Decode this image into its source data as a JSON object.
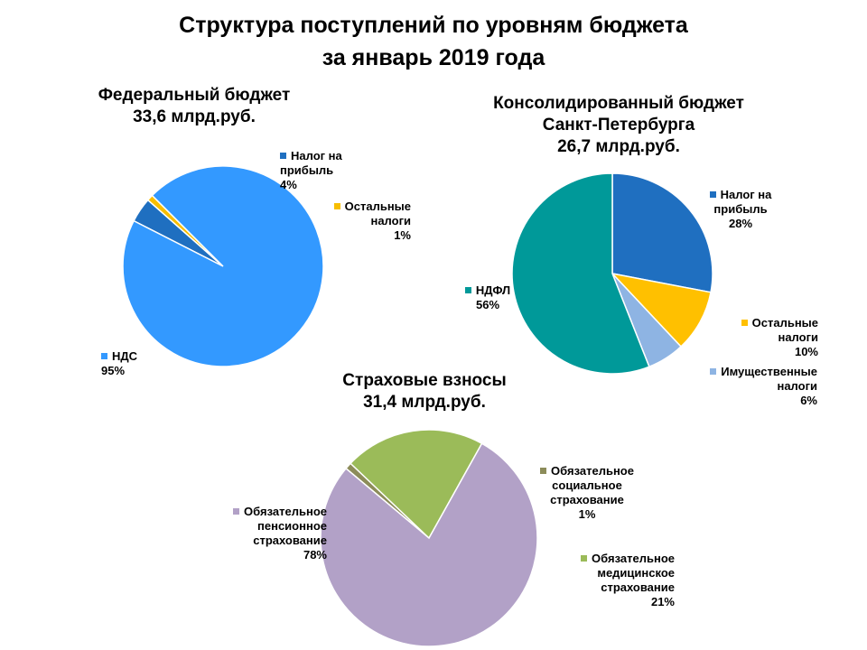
{
  "title": {
    "line1": "Структура поступлений по уровням бюджета",
    "line2": "за январь 2019 года"
  },
  "chart_data": [
    {
      "type": "pie",
      "title": [
        "Федеральный бюджет",
        "33,6 млрд.руб."
      ],
      "slices": [
        {
          "label": [
            "Налог на",
            "прибыль"
          ],
          "value": 4,
          "value_text": "4%",
          "color": "#1F6FC0"
        },
        {
          "label": [
            "Остальные",
            "налоги"
          ],
          "value": 1,
          "value_text": "1%",
          "color": "#F7BE00"
        },
        {
          "label": [
            "НДС"
          ],
          "value": 95,
          "value_text": "95%",
          "color": "#3399FF"
        }
      ]
    },
    {
      "type": "pie",
      "title": [
        "Консолидированный бюджет",
        "Санкт-Петербурга",
        "26,7 млрд.руб."
      ],
      "slices": [
        {
          "label": [
            "Налог на",
            "прибыль"
          ],
          "value": 28,
          "value_text": "28%",
          "color": "#1F6FC0"
        },
        {
          "label": [
            "Остальные",
            "налоги"
          ],
          "value": 10,
          "value_text": "10%",
          "color": "#FFC000"
        },
        {
          "label": [
            "Имущественные",
            "налоги"
          ],
          "value": 6,
          "value_text": "6%",
          "color": "#8EB4E3"
        },
        {
          "label": [
            "НДФЛ"
          ],
          "value": 56,
          "value_text": "56%",
          "color": "#009999"
        }
      ]
    },
    {
      "type": "pie",
      "title": [
        "Страховые взносы",
        "31,4 млрд.руб."
      ],
      "slices": [
        {
          "label": [
            "Обязательное",
            "социальное",
            "страхование"
          ],
          "value": 1,
          "value_text": "1%",
          "color": "#8C8C5A"
        },
        {
          "label": [
            "Обязательное",
            "медицинское",
            "страхование"
          ],
          "value": 21,
          "value_text": "21%",
          "color": "#9BBB59"
        },
        {
          "label": [
            "Обязательное",
            "пенсионное",
            "страхование"
          ],
          "value": 78,
          "value_text": "78%",
          "color": "#B2A1C7"
        }
      ]
    }
  ]
}
